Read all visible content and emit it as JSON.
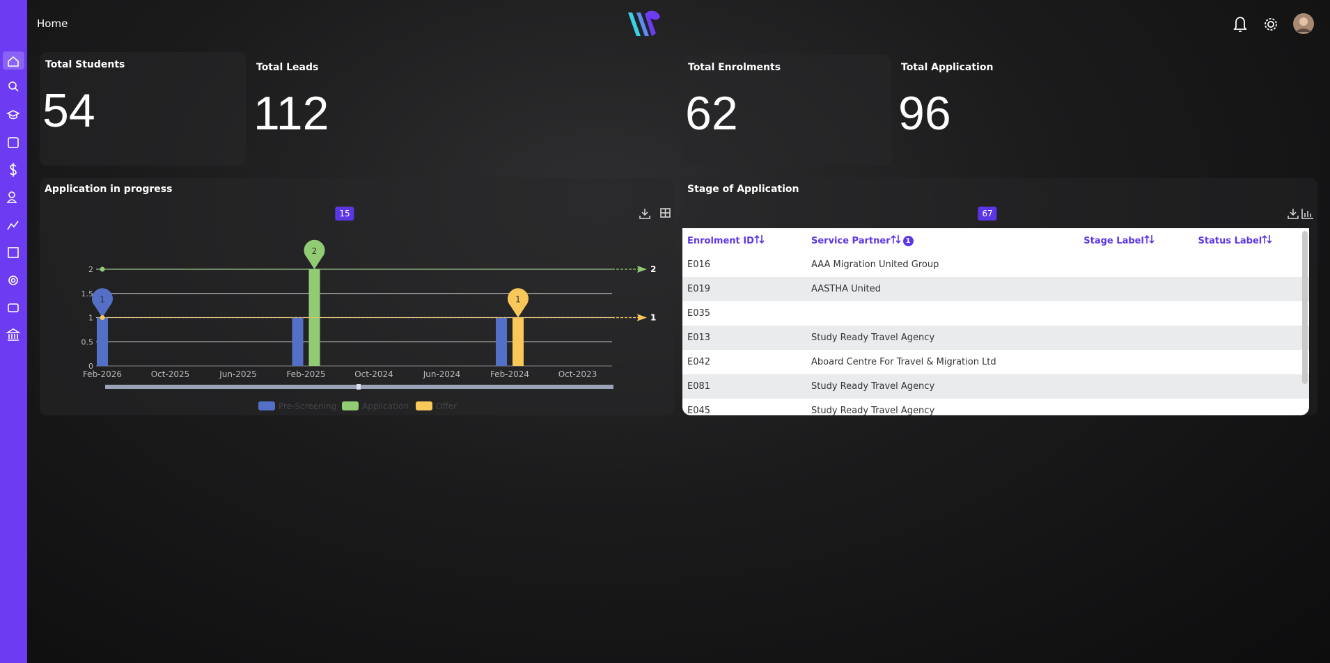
{
  "header": {
    "title": "Home"
  },
  "stats": [
    {
      "label": "Total Students",
      "value": 54
    },
    {
      "label": "Total Leads",
      "value": 112
    },
    {
      "label": "Total Enrolments",
      "value": 62
    },
    {
      "label": "Total Application",
      "value": 96
    }
  ],
  "chart_data": {
    "type": "bar",
    "title": "Application in progress",
    "total": 15,
    "categories": [
      "Feb-2026",
      "Oct-2025",
      "Jun-2025",
      "Feb-2025",
      "Oct-2024",
      "Jun-2024",
      "Feb-2024",
      "Oct-2023"
    ],
    "series": [
      {
        "name": "Pre-Screening",
        "color": "#5470c6",
        "values": [
          1,
          null,
          null,
          1,
          null,
          null,
          1,
          null
        ]
      },
      {
        "name": "Application",
        "color": "#91cc75",
        "values": [
          null,
          null,
          null,
          2,
          null,
          null,
          null,
          null
        ]
      },
      {
        "name": "Offer",
        "color": "#fac858",
        "values": [
          null,
          null,
          null,
          null,
          null,
          null,
          1,
          null
        ]
      }
    ],
    "ylim": [
      0,
      2
    ],
    "yticks": [
      0,
      0.5,
      1,
      1.5,
      2
    ],
    "grid": true
  },
  "table": {
    "title": "Stage of Application",
    "total": 67,
    "sort_badge": 1,
    "columns": [
      "Enrolment ID",
      "Service Partner",
      "Stage Label",
      "Status Label"
    ],
    "rows": [
      [
        "E016",
        "AAA Migration United Group"
      ],
      [
        "E019",
        "AASTHA United"
      ],
      [
        "E035",
        null
      ],
      [
        "E013",
        "Study Ready Travel Agency"
      ],
      [
        "E042",
        "Aboard Centre For Travel & Migration Ltd"
      ],
      [
        "E081",
        "Study Ready Travel Agency"
      ],
      [
        "E045",
        "Study Ready Travel Agency"
      ]
    ]
  }
}
